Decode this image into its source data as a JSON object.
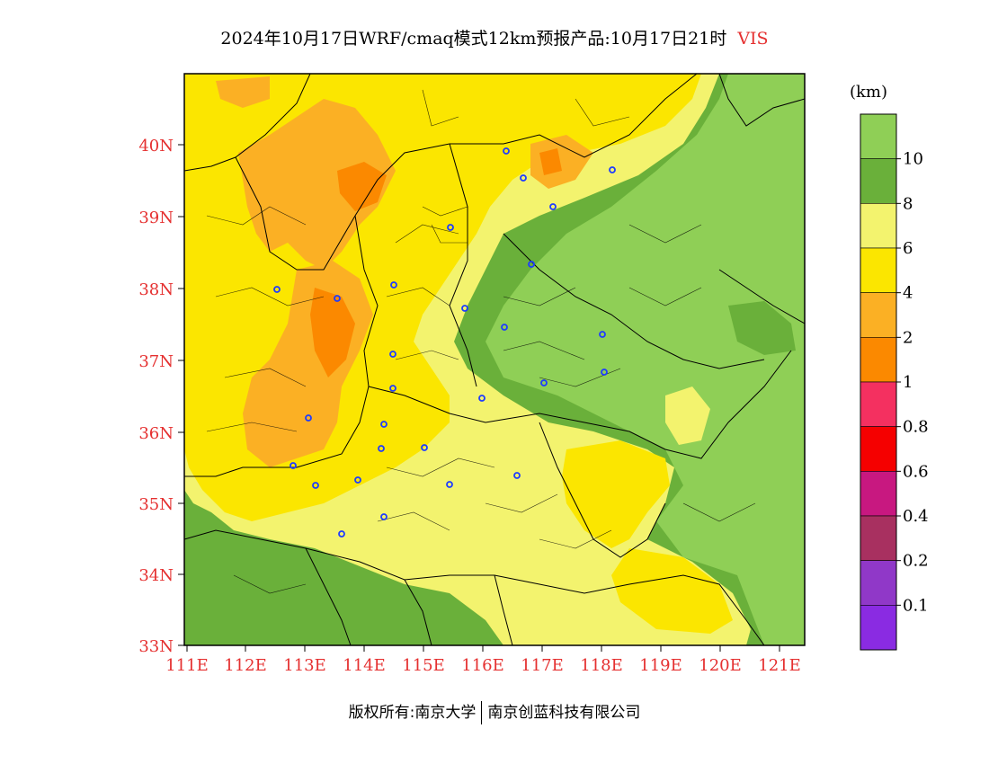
{
  "title": {
    "main": "2024年10月17日WRF/cmaq模式12km预报产品:10月17日21时",
    "variable": "VIS"
  },
  "colors": {
    "label": "#e53030",
    "ocean": "#8fcf56",
    "vis_10_plus": "#8fcf56",
    "vis_8_10": "#6ab03a",
    "vis_6_8": "#f3f36e",
    "vis_4_6": "#fbe600",
    "vis_2_4": "#fbb024",
    "vis_1_2": "#fb8900",
    "station_marker": "#1e3cff"
  },
  "map": {
    "lat_labels": [
      "40N",
      "39N",
      "38N",
      "37N",
      "36N",
      "35N",
      "34N",
      "33N"
    ],
    "lon_labels": [
      "111E",
      "112E",
      "113E",
      "114E",
      "115E",
      "116E",
      "117E",
      "118E",
      "119E",
      "120E",
      "121E"
    ]
  },
  "colorbar": {
    "unit": "(km)",
    "labels": [
      "10",
      "8",
      "6",
      "4",
      "2",
      "1",
      "0.8",
      "0.6",
      "0.4",
      "0.2",
      "0.1"
    ],
    "colors": [
      "#8fcf56",
      "#6ab03a",
      "#f3f36e",
      "#fbe600",
      "#fbb024",
      "#fb8900",
      "#f43060",
      "#f50000",
      "#c81880",
      "#a83060",
      "#9038c8",
      "#8a2be2"
    ]
  },
  "footer": {
    "copyright": "版权所有:南京大学",
    "company": "南京创蓝科技有限公司"
  }
}
